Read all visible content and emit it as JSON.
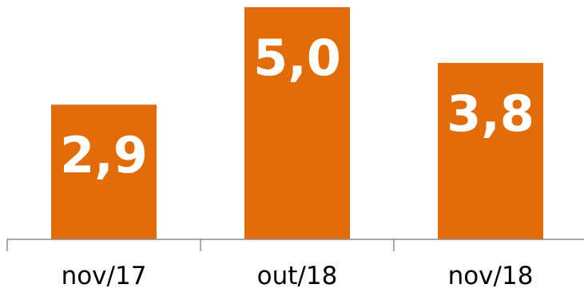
{
  "chart_data": {
    "type": "bar",
    "categories": [
      "nov/17",
      "out/18",
      "nov/18"
    ],
    "values": [
      2.9,
      5.0,
      3.8
    ],
    "value_labels": [
      "2,9",
      "5,0",
      "3,8"
    ],
    "title": "",
    "xlabel": "",
    "ylabel": "",
    "ylim": [
      0,
      5.0
    ],
    "grid": false,
    "legend": "none",
    "colors": {
      "bar": "#e36c0a",
      "axis": "#8c8c8c",
      "label": "#ffffff",
      "tick_text": "#000000"
    }
  }
}
